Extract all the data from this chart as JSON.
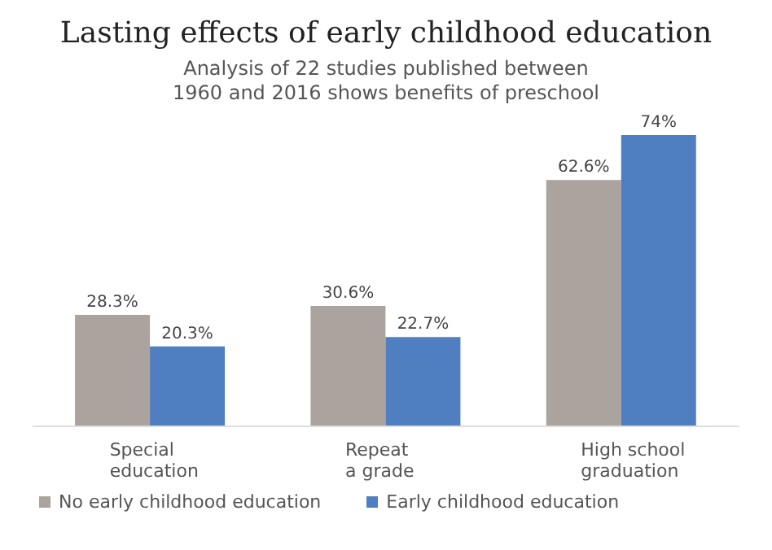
{
  "chart_data": {
    "type": "bar",
    "title": "Lasting effects of early childhood education",
    "subtitle": "Analysis of 22 studies published between\n1960 and 2016 shows benefits of preschool",
    "categories": [
      "Special\neducation",
      "Repeat\na grade",
      "High school\ngraduation"
    ],
    "series": [
      {
        "name": "No early childhood education",
        "color": "#aaa39e",
        "values": [
          28.3,
          30.6,
          62.6
        ],
        "value_labels": [
          "28.3%",
          "30.6%",
          "62.6%"
        ]
      },
      {
        "name": "Early childhood education",
        "color": "#4f7fc0",
        "values": [
          20.3,
          22.7,
          74
        ],
        "value_labels": [
          "20.3%",
          "22.7%",
          "74%"
        ]
      }
    ],
    "legend": "bottom left"
  }
}
